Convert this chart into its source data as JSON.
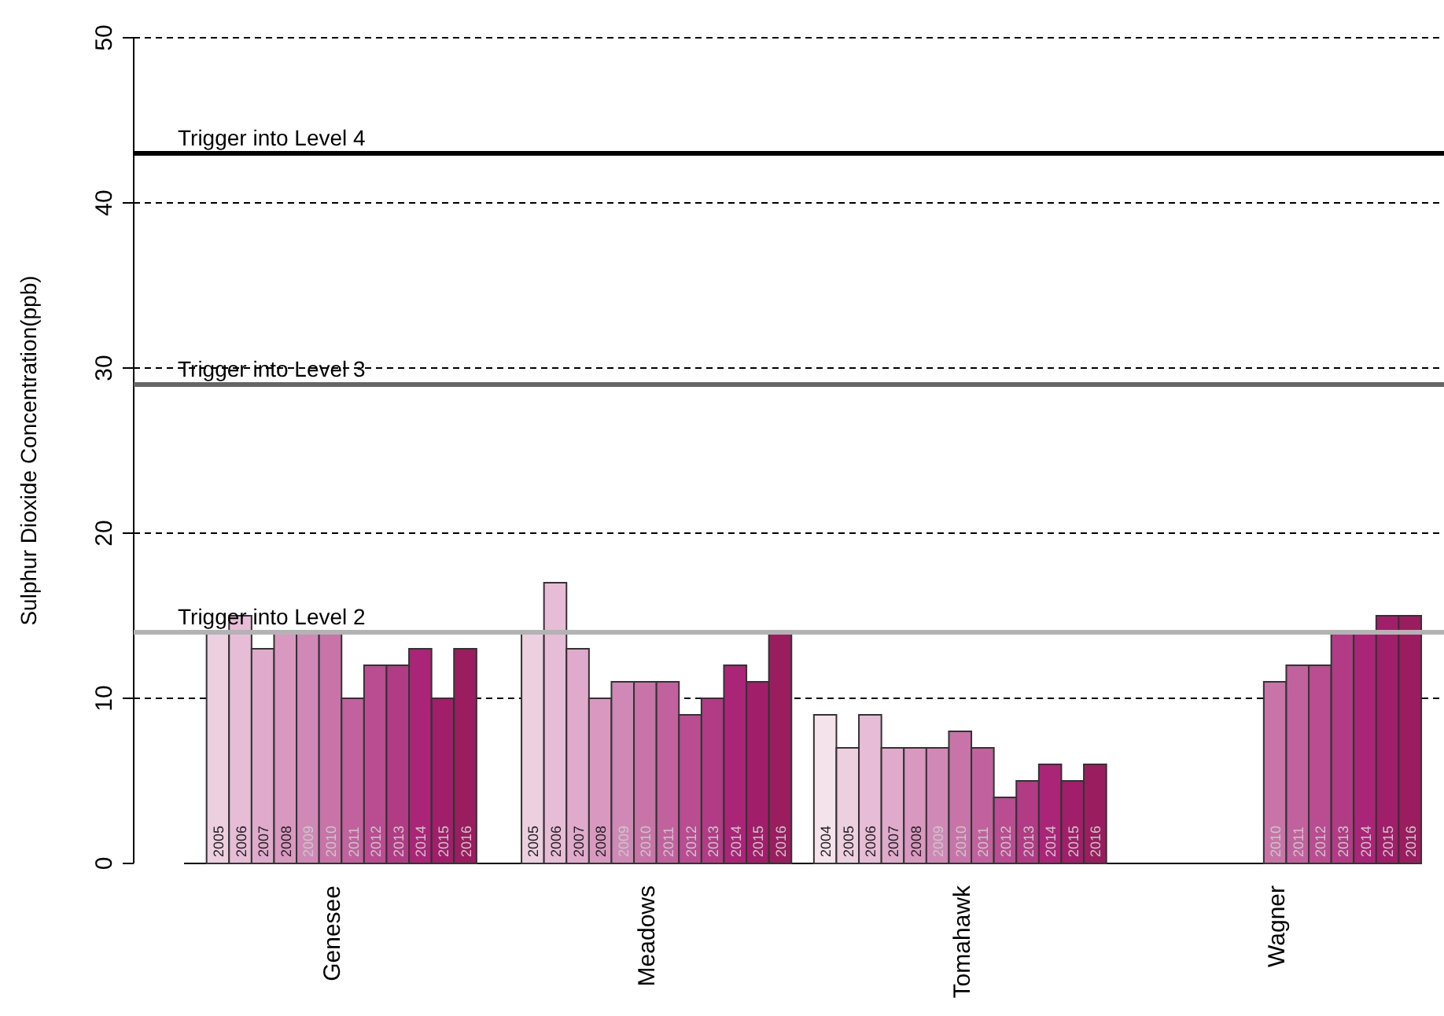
{
  "chart_data": {
    "type": "bar",
    "ylabel": "Sulphur Dioxide Concentration(ppb)",
    "categories": [
      "Genesee",
      "Meadows",
      "Tomahawk",
      "Wagner"
    ],
    "series": [
      {
        "name": "2004",
        "color": "#f5e3ec",
        "values": [
          null,
          null,
          9,
          null
        ]
      },
      {
        "name": "2005",
        "color": "#edd0e0",
        "values": [
          14,
          14,
          7,
          null
        ]
      },
      {
        "name": "2006",
        "color": "#e6bcd6",
        "values": [
          15,
          17,
          9,
          null
        ]
      },
      {
        "name": "2007",
        "color": "#dfaacb",
        "values": [
          13,
          13,
          7,
          null
        ]
      },
      {
        "name": "2008",
        "color": "#d898c0",
        "values": [
          14,
          10,
          7,
          null
        ]
      },
      {
        "name": "2009",
        "color": "#d088b6",
        "values": [
          14,
          11,
          7,
          null
        ]
      },
      {
        "name": "2010",
        "color": "#c874a8",
        "values": [
          14,
          11,
          8,
          11
        ]
      },
      {
        "name": "2011",
        "color": "#c1629e",
        "values": [
          10,
          11,
          7,
          12
        ]
      },
      {
        "name": "2012",
        "color": "#ba4d92",
        "values": [
          12,
          9,
          4,
          12
        ]
      },
      {
        "name": "2013",
        "color": "#b23b85",
        "values": [
          12,
          10,
          5,
          14
        ]
      },
      {
        "name": "2014",
        "color": "#aa2477",
        "values": [
          13,
          12,
          6,
          14
        ]
      },
      {
        "name": "2015",
        "color": "#a11f6a",
        "values": [
          10,
          11,
          5,
          15
        ]
      },
      {
        "name": "2016",
        "color": "#9a1e5f",
        "values": [
          13,
          14,
          6,
          15
        ]
      }
    ],
    "ylim": [
      0,
      50
    ],
    "yticks": [
      0,
      10,
      20,
      30,
      40,
      50
    ],
    "grid": "y",
    "legend": false,
    "ref_lines": [
      {
        "axis": "y",
        "value": 14,
        "label": "Trigger into Level 2",
        "color": "#b3b3b3"
      },
      {
        "axis": "y",
        "value": 29,
        "label": "Trigger into Level 3",
        "color": "#666666"
      },
      {
        "axis": "y",
        "value": 43,
        "label": "Trigger into Level 4",
        "color": "#000000"
      }
    ]
  }
}
